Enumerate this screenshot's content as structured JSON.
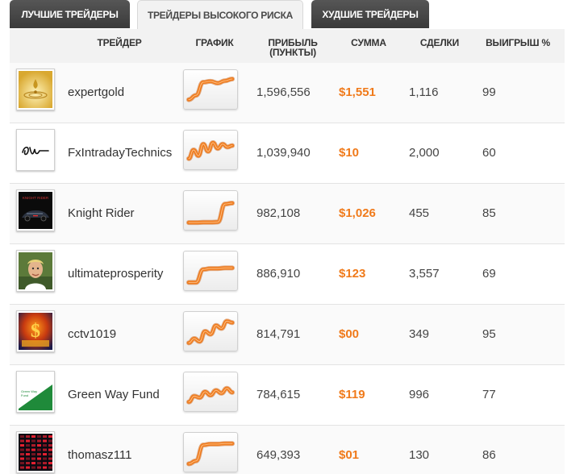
{
  "tabs": [
    {
      "label": "Лучшие трейдеры",
      "active": false
    },
    {
      "label": "Трейдеры высокого риска",
      "active": true
    },
    {
      "label": "Худшие трейдеры",
      "active": false
    }
  ],
  "columns": {
    "trader": "Трейдер",
    "chart": "График",
    "profit": "Прибыль (пункты)",
    "sum": "Сумма",
    "deals": "Сделки",
    "win": "Выигрыш %"
  },
  "colors": {
    "accent": "#f07a1a",
    "tab_dark": "#3a3a3a",
    "header_bg": "#f2f2f2"
  },
  "rows": [
    {
      "name": "expertgold",
      "profit": "1,596,556",
      "sum": "$1,551",
      "deals": "1,116",
      "win": "99",
      "avatar_icon": "gold-ripple-icon",
      "trend": [
        0.15,
        0.3,
        0.75,
        0.78,
        0.72,
        0.8,
        0.86
      ]
    },
    {
      "name": "FxIntradayTechnics",
      "profit": "1,039,940",
      "sum": "$10",
      "deals": "2,000",
      "win": "60",
      "avatar_icon": "signature-icon",
      "trend": [
        0.2,
        0.5,
        0.3,
        0.7,
        0.45,
        0.75,
        0.55,
        0.7,
        0.6,
        0.65
      ]
    },
    {
      "name": "Knight Rider",
      "profit": "982,108",
      "sum": "$1,026",
      "deals": "455",
      "win": "85",
      "avatar_icon": "car-icon",
      "trend": [
        0.08,
        0.08,
        0.09,
        0.09,
        0.1,
        0.72,
        0.75
      ]
    },
    {
      "name": "ultimateprosperity",
      "profit": "886,910",
      "sum": "$123",
      "deals": "3,557",
      "win": "69",
      "avatar_icon": "portrait-icon",
      "trend": [
        0.1,
        0.1,
        0.55,
        0.58,
        0.58,
        0.6,
        0.6
      ]
    },
    {
      "name": "cctv1019",
      "profit": "814,791",
      "sum": "$00",
      "deals": "349",
      "win": "95",
      "avatar_icon": "money-icon",
      "trend": [
        0.1,
        0.25,
        0.15,
        0.5,
        0.4,
        0.7,
        0.6,
        0.85,
        0.8
      ]
    },
    {
      "name": "Green Way Fund",
      "profit": "784,615",
      "sum": "$119",
      "deals": "996",
      "win": "77",
      "avatar_icon": "green-way-fund-logo-icon",
      "trend": [
        0.15,
        0.35,
        0.3,
        0.5,
        0.38,
        0.55,
        0.45,
        0.62,
        0.48
      ]
    },
    {
      "name": "thomasz111",
      "profit": "649,393",
      "sum": "$01",
      "deals": "130",
      "win": "86",
      "avatar_icon": "stock-board-icon",
      "trend": [
        0.1,
        0.2,
        0.75,
        0.78,
        0.78,
        0.8,
        0.8
      ]
    }
  ]
}
